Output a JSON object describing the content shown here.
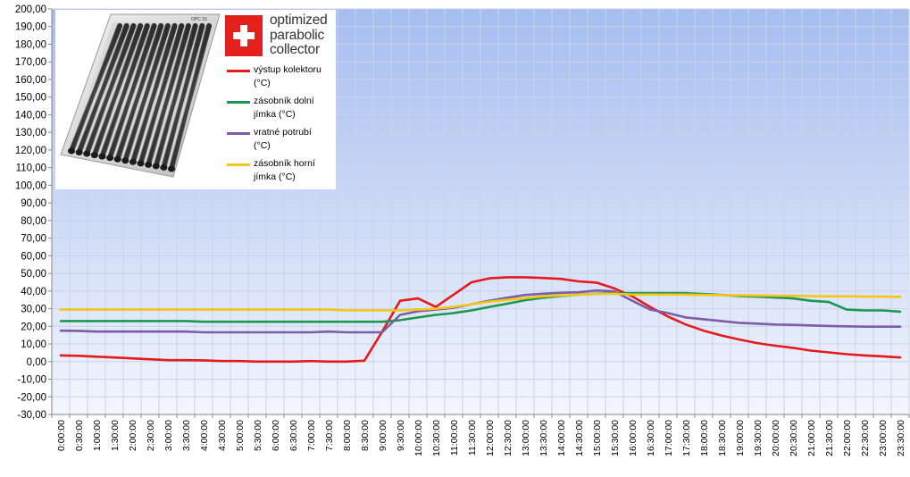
{
  "chart_data": {
    "type": "line",
    "title": "",
    "xlabel": "",
    "ylabel": "",
    "ylim": [
      -30,
      200
    ],
    "ytick_step": 10,
    "y_tick_labels": [
      "-30,00",
      "-20,00",
      "-10,00",
      "0,00",
      "10,00",
      "20,00",
      "30,00",
      "40,00",
      "50,00",
      "60,00",
      "70,00",
      "80,00",
      "90,00",
      "100,00",
      "110,00",
      "120,00",
      "130,00",
      "140,00",
      "150,00",
      "160,00",
      "170,00",
      "180,00",
      "190,00",
      "200,00"
    ],
    "grid": true,
    "legend_placement": "top-left",
    "background_gradient": [
      "#a6bdf0",
      "#f3f6fd"
    ],
    "categories": [
      "0:00:00",
      "0:30:00",
      "1:00:00",
      "1:30:00",
      "2:00:00",
      "2:30:00",
      "3:00:00",
      "3:30:00",
      "4:00:00",
      "4:30:00",
      "5:00:00",
      "5:30:00",
      "6:00:00",
      "6:30:00",
      "7:00:00",
      "7:30:00",
      "8:00:00",
      "8:30:00",
      "9:00:00",
      "9:30:00",
      "10:00:00",
      "10:30:00",
      "11:00:00",
      "11:30:00",
      "12:00:00",
      "12:30:00",
      "13:00:00",
      "13:30:00",
      "14:00:00",
      "14:30:00",
      "15:00:00",
      "15:30:00",
      "16:00:00",
      "16:30:00",
      "17:00:00",
      "17:30:00",
      "18:00:00",
      "18:30:00",
      "19:00:00",
      "19:30:00",
      "20:00:00",
      "20:30:00",
      "21:00:00",
      "21:30:00",
      "22:00:00",
      "22:30:00",
      "23:00:00",
      "23:30:00"
    ],
    "series": [
      {
        "name": "výstup kolektoru (°C)",
        "color": "#e41a1c",
        "values": [
          3.5,
          3.3,
          2.8,
          2.3,
          1.8,
          1.3,
          0.8,
          0.8,
          0.7,
          0.3,
          0.3,
          0.0,
          0.0,
          0.0,
          0.3,
          0.0,
          0.0,
          0.5,
          17.0,
          34.5,
          35.8,
          31.0,
          38.0,
          45.0,
          47.2,
          47.8,
          47.8,
          47.4,
          46.9,
          45.5,
          44.8,
          41.5,
          37.0,
          31.0,
          25.5,
          21.0,
          17.5,
          14.8,
          12.5,
          10.5,
          9.0,
          7.8,
          6.2,
          5.2,
          4.2,
          3.5,
          3.0,
          2.3
        ]
      },
      {
        "name": "zásobník dolní jímka (°C)",
        "color": "#1a9850",
        "values": [
          23.0,
          23.0,
          23.0,
          23.0,
          23.0,
          23.0,
          23.0,
          23.0,
          22.6,
          22.6,
          22.6,
          22.6,
          22.6,
          22.6,
          22.6,
          22.6,
          22.6,
          22.6,
          22.6,
          23.5,
          25.0,
          26.5,
          27.5,
          29.0,
          31.0,
          32.8,
          34.8,
          36.2,
          37.2,
          38.0,
          38.5,
          38.8,
          38.8,
          38.8,
          38.8,
          38.8,
          38.3,
          37.8,
          37.2,
          36.8,
          36.3,
          35.8,
          34.5,
          33.8,
          29.5,
          29.0,
          29.0,
          28.3
        ]
      },
      {
        "name": "vratné potrubí (°C)",
        "color": "#7b5ea7",
        "values": [
          17.5,
          17.4,
          17.0,
          17.0,
          17.0,
          17.0,
          17.0,
          17.0,
          16.6,
          16.6,
          16.6,
          16.6,
          16.6,
          16.6,
          16.6,
          17.0,
          16.6,
          16.6,
          16.6,
          26.5,
          28.5,
          29.5,
          30.5,
          32.5,
          34.5,
          36.2,
          37.8,
          38.5,
          39.0,
          39.3,
          40.3,
          39.8,
          34.5,
          29.5,
          27.5,
          25.0,
          24.0,
          23.0,
          22.0,
          21.5,
          21.0,
          20.8,
          20.5,
          20.2,
          20.0,
          19.8,
          19.8,
          19.8
        ]
      },
      {
        "name": "zásobník horní jímka (°C)",
        "color": "#f5c518",
        "values": [
          29.5,
          29.5,
          29.5,
          29.5,
          29.5,
          29.5,
          29.5,
          29.5,
          29.5,
          29.5,
          29.5,
          29.5,
          29.5,
          29.5,
          29.5,
          29.5,
          29.0,
          29.0,
          29.0,
          29.0,
          29.5,
          30.0,
          31.0,
          32.5,
          34.0,
          35.0,
          36.0,
          37.0,
          37.5,
          38.0,
          38.3,
          38.5,
          38.0,
          38.0,
          38.0,
          38.0,
          37.8,
          37.7,
          37.6,
          37.5,
          37.4,
          37.3,
          37.2,
          37.0,
          37.0,
          36.9,
          36.8,
          36.7
        ]
      }
    ]
  },
  "legend": {
    "brand_line1": "optimized",
    "brand_line2": "parabolic",
    "brand_line3": "collector",
    "product_label": "OPC 15",
    "items": [
      {
        "line1": "výstup kolektoru",
        "line2": "(°C)"
      },
      {
        "line1": "zásobník dolní",
        "line2": "jímka (°C)"
      },
      {
        "line1": "vratné potrubí",
        "line2": "(°C)"
      },
      {
        "line1": "zásobník horní",
        "line2": "jímka (°C)"
      }
    ]
  }
}
